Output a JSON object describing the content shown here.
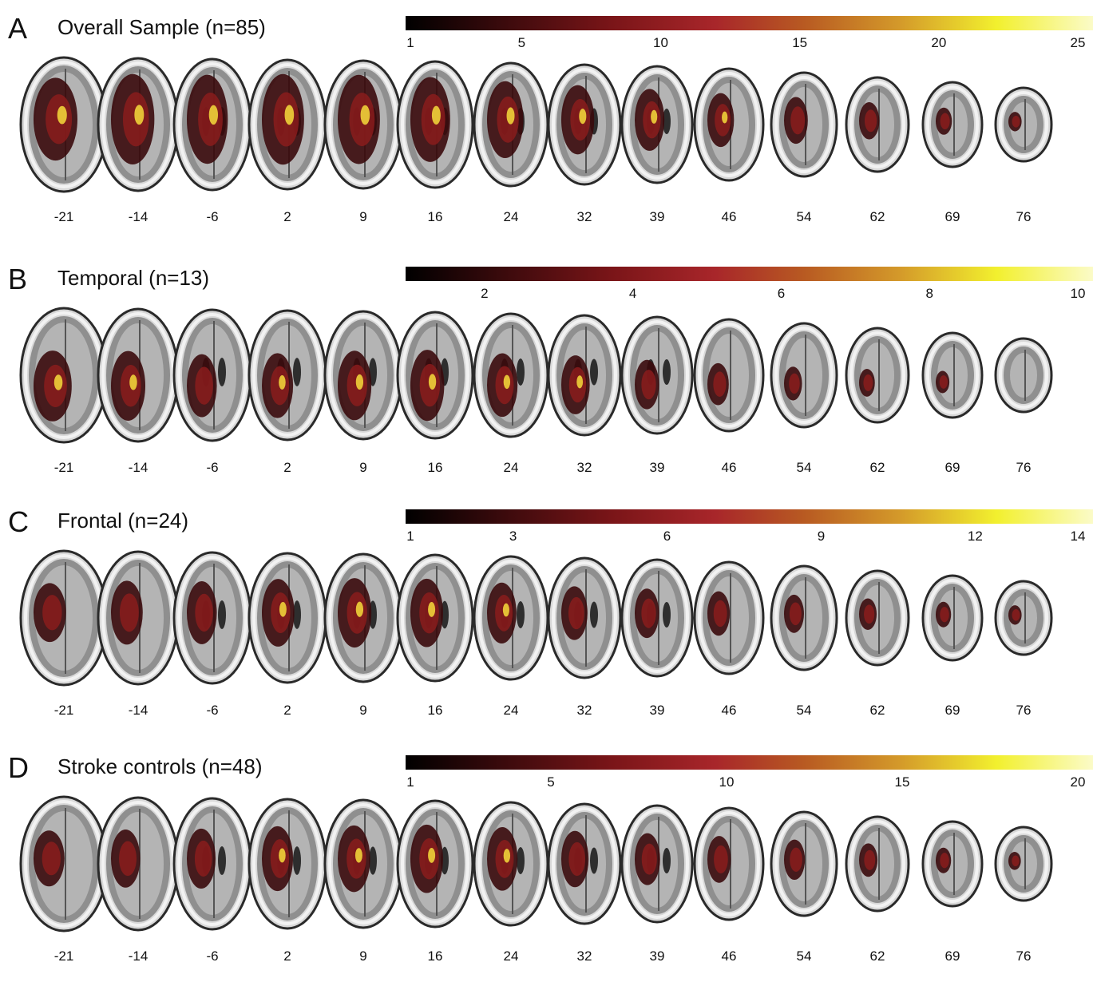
{
  "slice_labels": [
    "-21",
    "-14",
    "-6",
    "2",
    "9",
    "16",
    "24",
    "32",
    "39",
    "46",
    "54",
    "62",
    "69",
    "76"
  ],
  "panels": [
    {
      "letter": "A",
      "title": "Overall Sample (n=85)",
      "colorbar_ticks": [
        "1",
        "5",
        "10",
        "15",
        "20",
        "25"
      ],
      "colorbar_range": [
        1,
        25
      ],
      "colorbar_values": [
        1,
        5,
        10,
        15,
        20,
        25
      ]
    },
    {
      "letter": "B",
      "title": "Temporal (n=13)",
      "colorbar_ticks": [
        "2",
        "4",
        "6",
        "8",
        "10"
      ],
      "colorbar_range": [
        1,
        10
      ],
      "colorbar_values": [
        2,
        4,
        6,
        8,
        10
      ]
    },
    {
      "letter": "C",
      "title": "Frontal (n=24)",
      "colorbar_ticks": [
        "1",
        "3",
        "6",
        "9",
        "12",
        "14"
      ],
      "colorbar_range": [
        1,
        14
      ],
      "colorbar_values": [
        1,
        3,
        6,
        9,
        12,
        14
      ]
    },
    {
      "letter": "D",
      "title": "Stroke controls (n=48)",
      "colorbar_ticks": [
        "1",
        "5",
        "10",
        "15",
        "20"
      ],
      "colorbar_range": [
        1,
        20
      ],
      "colorbar_values": [
        1,
        5,
        10,
        15,
        20
      ]
    }
  ],
  "colors": {
    "colormap": [
      "#000000",
      "#7a1518",
      "#a8262a",
      "#d49a2a",
      "#f2f02e",
      "#fbfbc8"
    ],
    "lesion_dark": "#3a0a0c",
    "lesion_mid": "#8a1c1c",
    "lesion_hot": "#f0d23a"
  }
}
